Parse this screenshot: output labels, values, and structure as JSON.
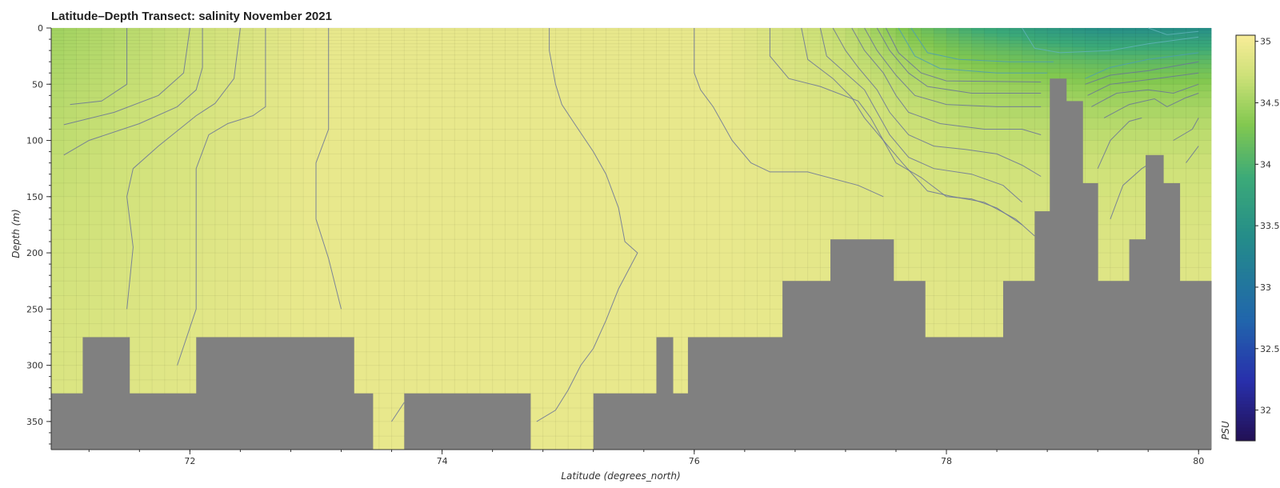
{
  "chart_data": {
    "type": "heatmap",
    "title": "Latitude–Depth Transect: salinity November 2021",
    "xlabel": "Latitude (degrees_north)",
    "ylabel": "Depth (m)",
    "xlim": [
      70.9,
      80.1
    ],
    "ylim": [
      375,
      0
    ],
    "x_ticks": [
      72,
      74,
      76,
      78,
      80
    ],
    "y_ticks": [
      0,
      50,
      100,
      150,
      200,
      250,
      300,
      350
    ],
    "colorbar": {
      "label": "PSU",
      "range": [
        31.75,
        35.05
      ],
      "ticks": [
        32,
        32.5,
        33,
        33.5,
        34,
        34.5,
        35
      ],
      "colormap": "viridis_r"
    },
    "mask_color": "#808080",
    "bathymetry_depth_m": [
      [
        70.9,
        71.15,
        325
      ],
      [
        71.15,
        71.52,
        275
      ],
      [
        71.52,
        72.05,
        325
      ],
      [
        72.05,
        73.3,
        275
      ],
      [
        73.3,
        73.45,
        325
      ],
      [
        73.45,
        73.7,
        375
      ],
      [
        73.7,
        74.7,
        325
      ],
      [
        74.7,
        75.2,
        375
      ],
      [
        75.2,
        75.7,
        325
      ],
      [
        75.7,
        75.83,
        275
      ],
      [
        75.83,
        75.95,
        325
      ],
      [
        75.95,
        76.7,
        275
      ],
      [
        76.7,
        77.08,
        225
      ],
      [
        77.08,
        77.58,
        188
      ],
      [
        77.58,
        77.83,
        225
      ],
      [
        77.83,
        78.45,
        275
      ],
      [
        78.45,
        78.7,
        225
      ],
      [
        78.7,
        78.82,
        163
      ],
      [
        78.82,
        78.95,
        45
      ],
      [
        78.95,
        79.08,
        65
      ],
      [
        79.08,
        79.2,
        138
      ],
      [
        79.2,
        79.45,
        225
      ],
      [
        79.45,
        79.58,
        188
      ],
      [
        79.58,
        79.72,
        113
      ],
      [
        79.72,
        79.85,
        138
      ],
      [
        79.85,
        80.1,
        225
      ]
    ]
  }
}
